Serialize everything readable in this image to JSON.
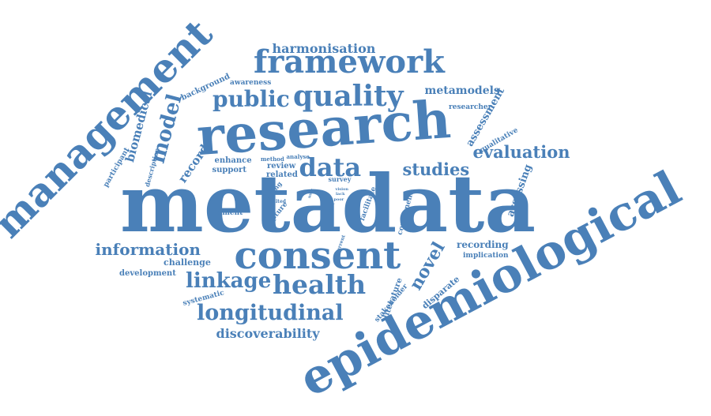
{
  "color": "#4a80b8",
  "words": [
    {
      "text": "metadata"
    },
    {
      "text": "research"
    },
    {
      "text": "epidemiological"
    },
    {
      "text": "management"
    },
    {
      "text": "framework"
    },
    {
      "text": "consent"
    },
    {
      "text": "quality"
    },
    {
      "text": "health"
    },
    {
      "text": "public"
    },
    {
      "text": "data"
    },
    {
      "text": "longitudinal"
    },
    {
      "text": "linkage"
    },
    {
      "text": "studies"
    },
    {
      "text": "evaluation"
    },
    {
      "text": "information"
    },
    {
      "text": "model"
    },
    {
      "text": "novel"
    },
    {
      "text": "harmonisation"
    },
    {
      "text": "discoverability"
    },
    {
      "text": "metamodels"
    },
    {
      "text": "biomedical"
    },
    {
      "text": "record"
    },
    {
      "text": "assessment"
    },
    {
      "text": "assessing"
    },
    {
      "text": "recording"
    },
    {
      "text": "challenge"
    },
    {
      "text": "development"
    },
    {
      "text": "implication"
    },
    {
      "text": "enhance"
    },
    {
      "text": "support"
    },
    {
      "text": "review"
    },
    {
      "text": "related"
    },
    {
      "text": "element"
    },
    {
      "text": "disparate"
    },
    {
      "text": "stakeholder"
    },
    {
      "text": "literature"
    },
    {
      "text": "component"
    },
    {
      "text": "facilitate"
    },
    {
      "text": "capture"
    },
    {
      "text": "setting"
    },
    {
      "text": "background"
    },
    {
      "text": "awareness"
    },
    {
      "text": "researcher"
    },
    {
      "text": "qualitative"
    },
    {
      "text": "participant"
    },
    {
      "text": "description"
    },
    {
      "text": "systematic"
    },
    {
      "text": "survey"
    },
    {
      "text": "method"
    },
    {
      "text": "analyse"
    },
    {
      "text": "limited"
    },
    {
      "text": "current"
    },
    {
      "text": "visible"
    },
    {
      "text": "lack"
    },
    {
      "text": "poor"
    },
    {
      "text": "vision"
    },
    {
      "text": "user"
    }
  ]
}
